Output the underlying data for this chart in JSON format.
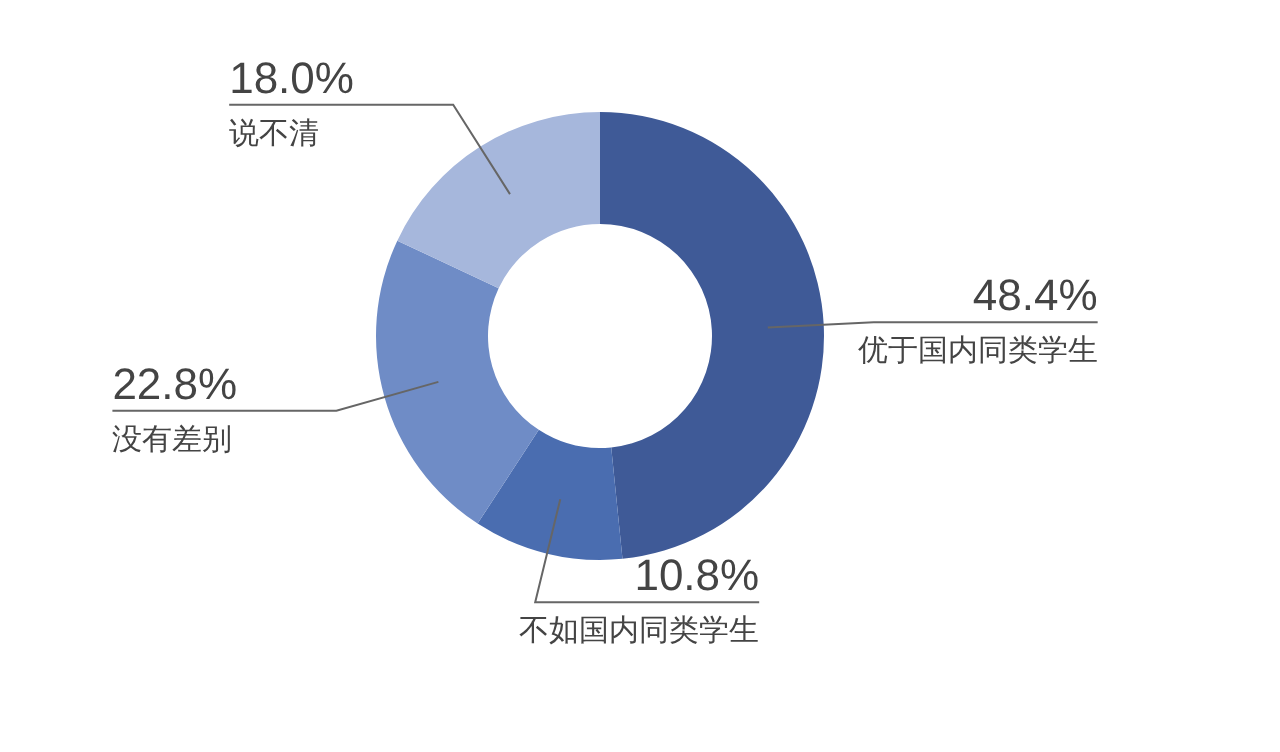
{
  "chart_data": {
    "type": "donut",
    "categories": [
      "优于国内同类学生",
      "不如国内同类学生",
      "没有差别",
      "说不清"
    ],
    "values": [
      48.4,
      10.8,
      22.8,
      18.0
    ],
    "value_labels": [
      "48.4%",
      "10.8%",
      "22.8%",
      "18.0%"
    ],
    "colors": [
      "#3f5a97",
      "#4a6db0",
      "#6f8cc6",
      "#a6b7dc"
    ],
    "legend": false
  }
}
